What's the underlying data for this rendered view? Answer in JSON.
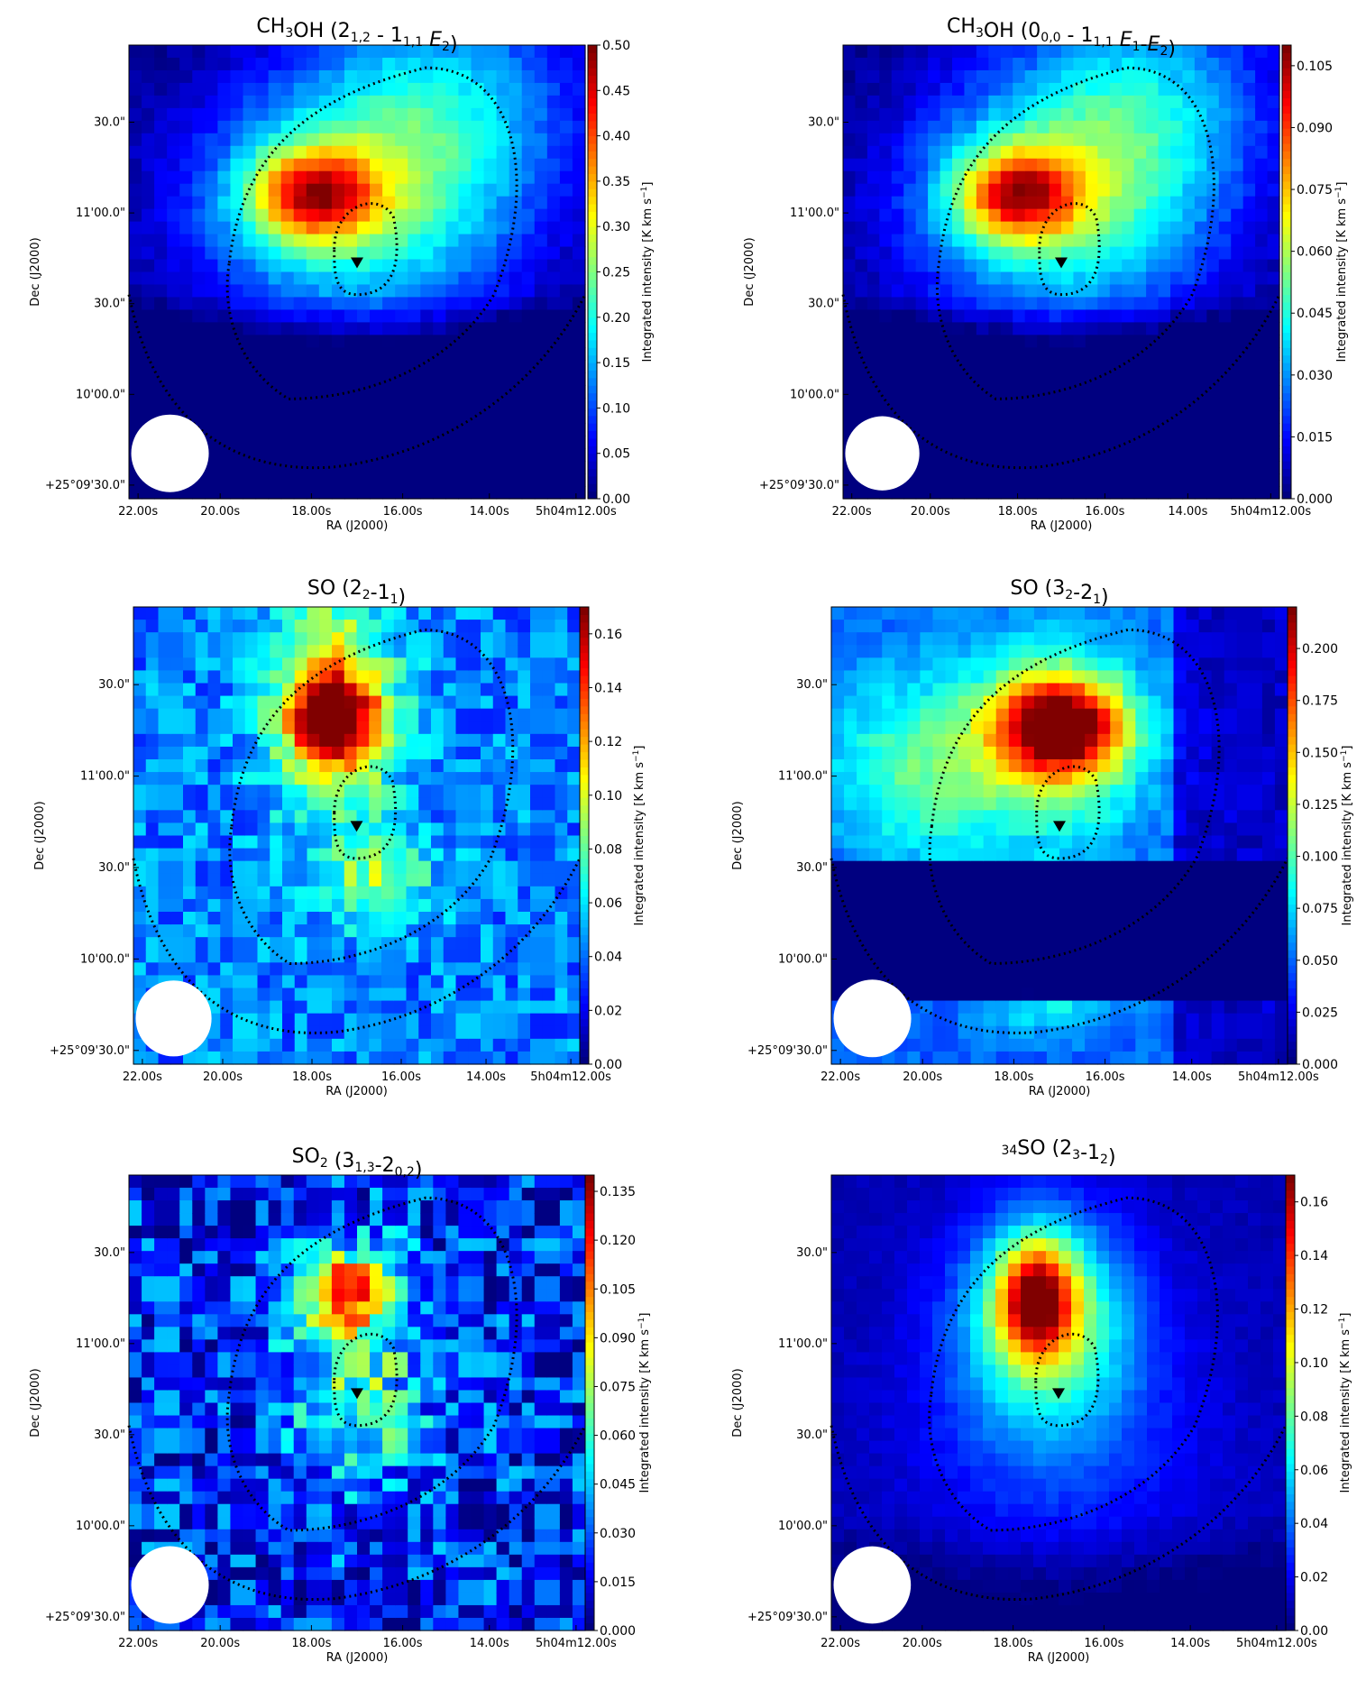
{
  "figure": {
    "panels": [
      {
        "id": "ch3oh-212",
        "title": {
          "main": "CH",
          "parts": [
            [
              "CH",
              ""
            ],
            [
              "3",
              "sub"
            ],
            [
              "OH (2",
              ""
            ],
            [
              "1,2",
              "sub"
            ],
            [
              " - 1",
              ""
            ],
            [
              "1,1",
              "sub"
            ],
            [
              " ",
              ""
            ],
            [
              "E",
              "it"
            ],
            [
              "2",
              "sub"
            ],
            [
              ")",
              ""
            ]
          ]
        },
        "cbar": {
          "ticks": [
            "0.00",
            "0.05",
            "0.10",
            "0.15",
            "0.20",
            "0.25",
            "0.30",
            "0.35",
            "0.40",
            "0.45",
            "0.50"
          ],
          "min": 0,
          "max": 0.5
        },
        "peak": 0.5,
        "peak_pos": [
          0.4,
          0.33
        ],
        "style": "ch3oh"
      },
      {
        "id": "ch3oh-000",
        "title": {
          "parts": [
            [
              "CH",
              ""
            ],
            [
              "3",
              "sub"
            ],
            [
              "OH (0",
              ""
            ],
            [
              "0,0",
              "sub"
            ],
            [
              " - 1",
              ""
            ],
            [
              "1,1",
              "sub"
            ],
            [
              " ",
              ""
            ],
            [
              "E",
              "it"
            ],
            [
              "1",
              "sub"
            ],
            [
              "-",
              ""
            ],
            [
              "E",
              "it"
            ],
            [
              "2",
              "sub"
            ],
            [
              ")",
              ""
            ]
          ]
        },
        "cbar": {
          "ticks": [
            "0.000",
            "0.015",
            "0.030",
            "0.045",
            "0.060",
            "0.075",
            "0.090",
            "0.105"
          ],
          "min": 0,
          "max": 0.11
        },
        "peak": 0.11,
        "peak_pos": [
          0.42,
          0.3
        ],
        "style": "ch3oh"
      },
      {
        "id": "so-22-11",
        "title": {
          "parts": [
            [
              "SO (2",
              ""
            ],
            [
              "2",
              "sub"
            ],
            [
              "-1",
              ""
            ],
            [
              "1",
              "sub"
            ],
            [
              ")",
              ""
            ]
          ]
        },
        "cbar": {
          "ticks": [
            "0.00",
            "0.02",
            "0.04",
            "0.06",
            "0.08",
            "0.10",
            "0.12",
            "0.14",
            "0.16"
          ],
          "min": 0,
          "max": 0.17
        },
        "peak": 0.17,
        "peak_pos": [
          0.45,
          0.25
        ],
        "style": "so"
      },
      {
        "id": "so-32-21",
        "title": {
          "parts": [
            [
              "SO (3",
              ""
            ],
            [
              "2",
              "sub"
            ],
            [
              "-2",
              ""
            ],
            [
              "1",
              "sub"
            ],
            [
              ")",
              ""
            ]
          ]
        },
        "cbar": {
          "ticks": [
            "0.000",
            "0.025",
            "0.050",
            "0.075",
            "0.100",
            "0.125",
            "0.150",
            "0.175",
            "0.200"
          ],
          "min": 0,
          "max": 0.22
        },
        "peak": 0.22,
        "peak_pos": [
          0.5,
          0.26
        ],
        "style": "so32"
      },
      {
        "id": "so2-313-202",
        "title": {
          "parts": [
            [
              "SO",
              ""
            ],
            [
              "2",
              "sub"
            ],
            [
              " (3",
              ""
            ],
            [
              "1,3",
              "sub"
            ],
            [
              "-2",
              ""
            ],
            [
              "0,2",
              "sub"
            ],
            [
              ")",
              ""
            ]
          ]
        },
        "cbar": {
          "ticks": [
            "0.000",
            "0.015",
            "0.030",
            "0.045",
            "0.060",
            "0.075",
            "0.090",
            "0.105",
            "0.120",
            "0.135"
          ],
          "min": 0,
          "max": 0.14
        },
        "peak": 0.14,
        "peak_pos": [
          0.5,
          0.27
        ],
        "style": "so2"
      },
      {
        "id": "34so-23-12",
        "title": {
          "parts": [
            [
              "34",
              "sup"
            ],
            [
              "SO (2",
              ""
            ],
            [
              "3",
              "sub"
            ],
            [
              "-1",
              ""
            ],
            [
              "2",
              "sub"
            ],
            [
              ")",
              ""
            ]
          ]
        },
        "cbar": {
          "ticks": [
            "0.00",
            "0.02",
            "0.04",
            "0.06",
            "0.08",
            "0.10",
            "0.12",
            "0.14",
            "0.16"
          ],
          "min": 0,
          "max": 0.17
        },
        "peak": 0.17,
        "peak_pos": [
          0.45,
          0.27
        ],
        "style": "so34"
      }
    ],
    "common": {
      "xticks": [
        "22.00s",
        "20.00s",
        "18.00s",
        "16.00s",
        "14.00s",
        "5h04m12.00s"
      ],
      "yticks": [
        "+25°09'30.0\"",
        "10'00.0\"",
        "30.0\"",
        "11'00.0\"",
        "30.0\""
      ],
      "xlabel": "RA (J2000)",
      "ylabel": "Dec (J2000)",
      "cbar_label": "Integrated intensity [K km s",
      "cbar_label_sup": "−1",
      "cbar_label_end": "]"
    }
  },
  "chart_data": [
    {
      "type": "heatmap",
      "title": "CH3OH (2_{1,2} - 1_{1,1} E2)",
      "xlabel": "RA (J2000)",
      "ylabel": "Dec (J2000)",
      "colorbar_label": "Integrated intensity [K km s^-1]",
      "colorbar_range": [
        0,
        0.5
      ],
      "xticks": [
        "22.00s",
        "20.00s",
        "18.00s",
        "16.00s",
        "14.00s",
        "5h04m12.00s"
      ],
      "yticks": [
        "+25°09'30.0\"",
        "10'00.0\"",
        "30.0\"",
        "11'00.0\"",
        "30.0\""
      ],
      "peak_value": 0.5
    },
    {
      "type": "heatmap",
      "title": "CH3OH (0_{0,0} - 1_{1,1} E1-E2)",
      "xlabel": "RA (J2000)",
      "ylabel": "Dec (J2000)",
      "colorbar_label": "Integrated intensity [K km s^-1]",
      "colorbar_range": [
        0,
        0.11
      ],
      "peak_value": 0.11
    },
    {
      "type": "heatmap",
      "title": "SO (2_2-1_1)",
      "xlabel": "RA (J2000)",
      "ylabel": "Dec (J2000)",
      "colorbar_label": "Integrated intensity [K km s^-1]",
      "colorbar_range": [
        0,
        0.17
      ],
      "peak_value": 0.17
    },
    {
      "type": "heatmap",
      "title": "SO (3_2-2_1)",
      "xlabel": "RA (J2000)",
      "ylabel": "Dec (J2000)",
      "colorbar_label": "Integrated intensity [K km s^-1]",
      "colorbar_range": [
        0,
        0.22
      ],
      "peak_value": 0.22
    },
    {
      "type": "heatmap",
      "title": "SO2 (3_{1,3}-2_{0,2})",
      "xlabel": "RA (J2000)",
      "ylabel": "Dec (J2000)",
      "colorbar_label": "Integrated intensity [K km s^-1]",
      "colorbar_range": [
        0,
        0.14
      ],
      "peak_value": 0.14
    },
    {
      "type": "heatmap",
      "title": "34SO (2_3-1_2)",
      "xlabel": "RA (J2000)",
      "ylabel": "Dec (J2000)",
      "colorbar_label": "Integrated intensity [K km s^-1]",
      "colorbar_range": [
        0,
        0.17
      ],
      "peak_value": 0.17
    }
  ]
}
